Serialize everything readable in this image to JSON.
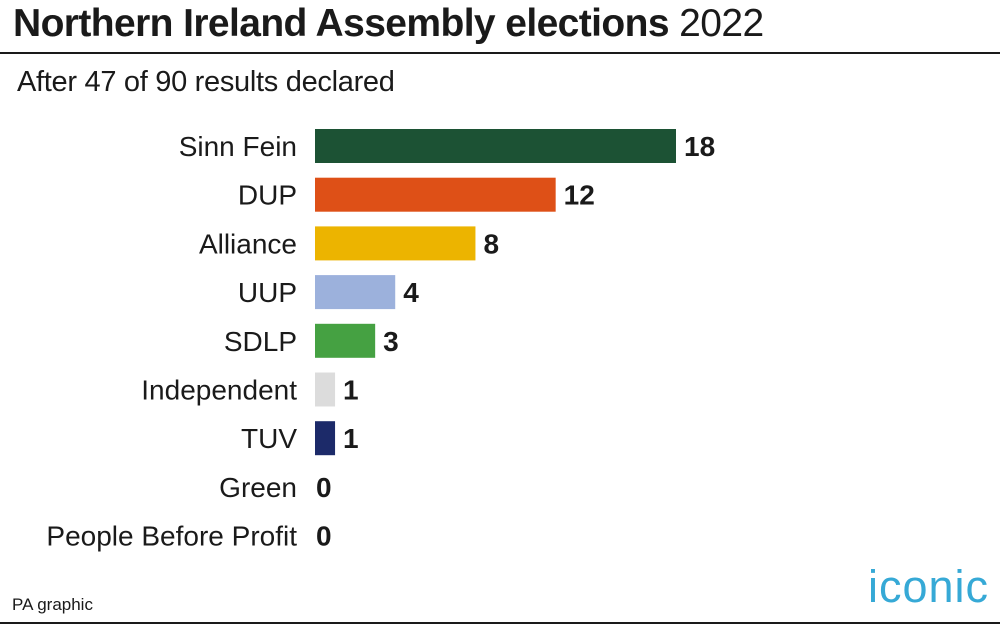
{
  "header": {
    "title_bold": "Northern Ireland Assembly elections",
    "title_year": "2022",
    "subtitle": "After 47 of 90 results declared"
  },
  "footer": {
    "source": "PA graphic",
    "logo_text": "iconic",
    "logo_color": "#36a9d6"
  },
  "chart_data": {
    "type": "bar",
    "orientation": "horizontal",
    "title": "Northern Ireland Assembly elections 2022",
    "subtitle": "After 47 of 90 results declared",
    "categories": [
      "Sinn Fein",
      "DUP",
      "Alliance",
      "UUP",
      "SDLP",
      "Independent",
      "TUV",
      "Green",
      "People Before Profit"
    ],
    "values": [
      18,
      12,
      8,
      4,
      3,
      1,
      1,
      0,
      0
    ],
    "colors": [
      "#1c5234",
      "#de5017",
      "#ecb400",
      "#9cb1dc",
      "#45a142",
      "#dcdcdc",
      "#1c2a69",
      "#45a142",
      "#c8102e"
    ],
    "xlim": [
      0,
      18
    ],
    "grid": false,
    "legend": "none",
    "data_labels": true
  }
}
